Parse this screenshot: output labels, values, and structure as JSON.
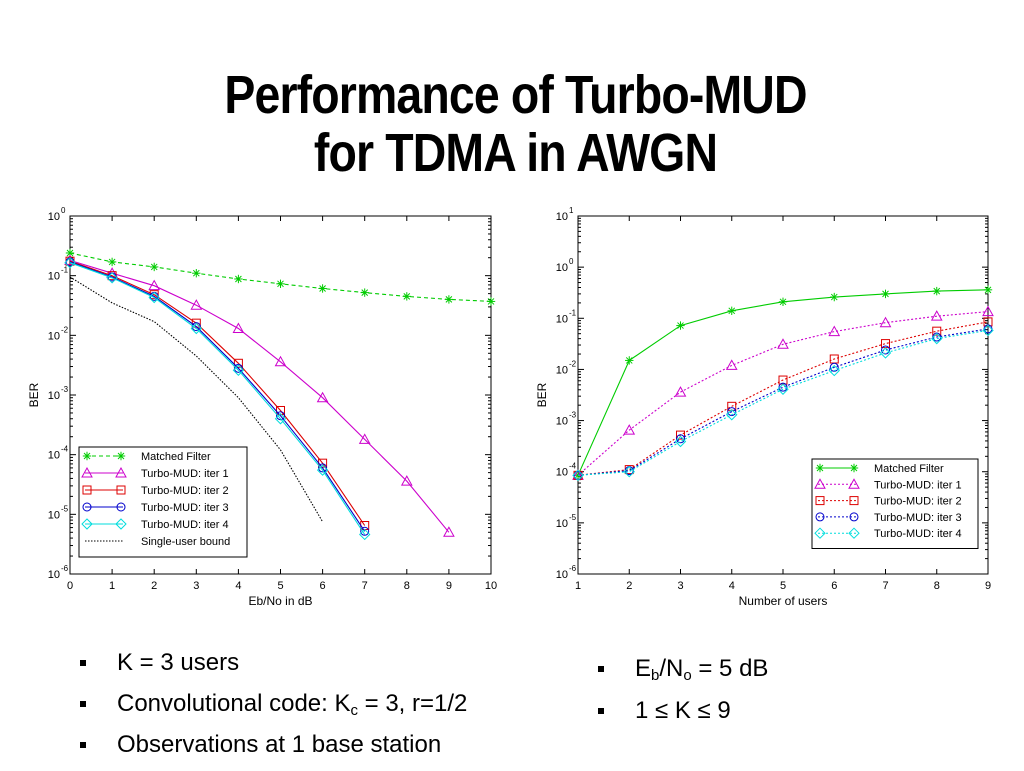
{
  "slide": {
    "title_line1": "Performance of Turbo-MUD",
    "title_line2": "for TDMA in AWGN"
  },
  "bullets_left": [
    {
      "text": "K = 3 users"
    },
    {
      "pre": "Convolutional code: K",
      "sub": "c",
      "post": " = 3, r=1/2"
    },
    {
      "text": "Observations at 1 base station"
    }
  ],
  "bullets_right": [
    {
      "p1": "E",
      "s1": "b",
      "p2": "/N",
      "s2": "o",
      "p3": " = 5 dB"
    },
    {
      "text": "1 ≤ K ≤ 9"
    }
  ],
  "chart_data": [
    {
      "type": "line",
      "xlabel": "Eb/No in dB",
      "ylabel": "BER",
      "yscale": "log",
      "xlim": [
        0,
        10
      ],
      "ylim": [
        1e-06,
        1
      ],
      "xticks": [
        0,
        1,
        2,
        3,
        4,
        5,
        6,
        7,
        8,
        9,
        10
      ],
      "yticks_exp": [
        0,
        -1,
        -2,
        -3,
        -4,
        -5,
        -6
      ],
      "grid": false,
      "legend_position": "bottom-left",
      "series": [
        {
          "name": "Matched Filter",
          "color": "#00cc00",
          "dash": "4,3",
          "marker": "star",
          "x": [
            0,
            1,
            2,
            3,
            4,
            5,
            6,
            7,
            8,
            9,
            10
          ],
          "y": [
            0.24,
            0.17,
            0.14,
            0.11,
            0.088,
            0.073,
            0.061,
            0.052,
            0.045,
            0.04,
            0.037
          ]
        },
        {
          "name": "Turbo-MUD: iter 1",
          "color": "#cc00cc",
          "dash": "",
          "marker": "triangle",
          "x": [
            0,
            1,
            2,
            3,
            4,
            5,
            6,
            7,
            8,
            9
          ],
          "y": [
            0.18,
            0.11,
            0.068,
            0.032,
            0.013,
            0.0036,
            0.0009,
            0.00018,
            3.6e-05,
            5e-06
          ]
        },
        {
          "name": "Turbo-MUD: iter 2",
          "color": "#dd0000",
          "dash": "",
          "marker": "square",
          "x": [
            0,
            1,
            2,
            3,
            4,
            5,
            6,
            7
          ],
          "y": [
            0.175,
            0.1,
            0.048,
            0.016,
            0.0034,
            0.00055,
            7.2e-05,
            6.5e-06
          ]
        },
        {
          "name": "Turbo-MUD: iter 3",
          "color": "#0000cc",
          "dash": "",
          "marker": "circle",
          "x": [
            0,
            1,
            2,
            3,
            4,
            5,
            6,
            7
          ],
          "y": [
            0.17,
            0.095,
            0.045,
            0.014,
            0.0028,
            0.00045,
            6e-05,
            5.2e-06
          ]
        },
        {
          "name": "Turbo-MUD: iter 4",
          "color": "#00dddd",
          "dash": "",
          "marker": "diamond",
          "x": [
            0,
            1,
            2,
            3,
            4,
            5,
            6,
            7
          ],
          "y": [
            0.165,
            0.092,
            0.043,
            0.013,
            0.0026,
            0.0004,
            5.5e-05,
            4.6e-06
          ]
        },
        {
          "name": "Single-user bound",
          "color": "#000000",
          "dash": "1.5,1.5",
          "marker": "none",
          "x": [
            0,
            1,
            2,
            3,
            4,
            5,
            6
          ],
          "y": [
            0.095,
            0.035,
            0.017,
            0.0045,
            0.0009,
            0.00012,
            7.5e-06
          ]
        }
      ]
    },
    {
      "type": "line",
      "xlabel": "Number of users",
      "ylabel": "BER",
      "yscale": "log",
      "xlim": [
        1,
        9
      ],
      "ylim": [
        1e-06,
        10
      ],
      "xticks": [
        1,
        2,
        3,
        4,
        5,
        6,
        7,
        8,
        9
      ],
      "yticks_exp": [
        1,
        0,
        -1,
        -2,
        -3,
        -4,
        -5,
        -6
      ],
      "grid": false,
      "legend_position": "bottom-right",
      "series": [
        {
          "name": "Matched Filter",
          "color": "#00cc00",
          "dash": "",
          "marker": "star",
          "x": [
            1,
            2,
            3,
            4,
            5,
            6,
            7,
            8,
            9
          ],
          "y": [
            8.5e-05,
            0.015,
            0.072,
            0.14,
            0.21,
            0.26,
            0.3,
            0.34,
            0.36
          ]
        },
        {
          "name": "Turbo-MUD: iter 1",
          "color": "#cc00cc",
          "dash": "2,2",
          "marker": "triangle",
          "x": [
            1,
            2,
            3,
            4,
            5,
            6,
            7,
            8,
            9
          ],
          "y": [
            8.5e-05,
            0.00065,
            0.0036,
            0.012,
            0.031,
            0.055,
            0.082,
            0.11,
            0.135
          ]
        },
        {
          "name": "Turbo-MUD: iter 2",
          "color": "#dd0000",
          "dash": "2,2",
          "marker": "square",
          "x": [
            1,
            2,
            3,
            4,
            5,
            6,
            7,
            8,
            9
          ],
          "y": [
            8.5e-05,
            0.00011,
            0.00052,
            0.0019,
            0.0062,
            0.016,
            0.032,
            0.056,
            0.085
          ]
        },
        {
          "name": "Turbo-MUD: iter 3",
          "color": "#0000cc",
          "dash": "2,2",
          "marker": "circle",
          "x": [
            1,
            2,
            3,
            4,
            5,
            6,
            7,
            8,
            9
          ],
          "y": [
            8.5e-05,
            0.000105,
            0.00044,
            0.0015,
            0.0045,
            0.011,
            0.024,
            0.043,
            0.062
          ]
        },
        {
          "name": "Turbo-MUD: iter 4",
          "color": "#00dddd",
          "dash": "2,2",
          "marker": "diamond",
          "x": [
            1,
            2,
            3,
            4,
            5,
            6,
            7,
            8,
            9
          ],
          "y": [
            8.5e-05,
            0.0001,
            0.00039,
            0.0013,
            0.0041,
            0.0095,
            0.021,
            0.04,
            0.058
          ]
        }
      ]
    }
  ]
}
